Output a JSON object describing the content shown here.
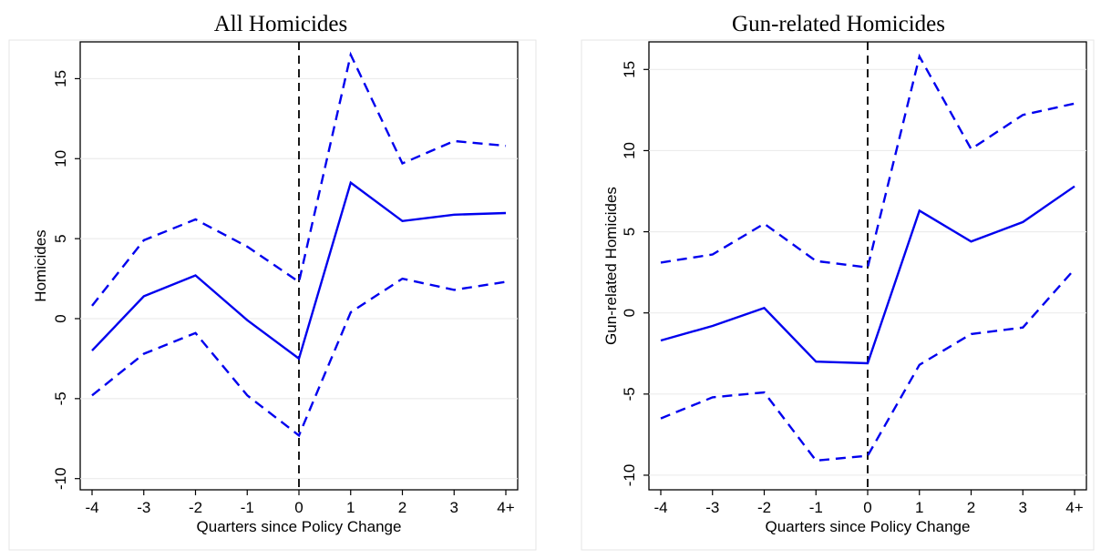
{
  "chart_data": [
    {
      "type": "line",
      "title": "All Homicides",
      "xlabel": "Quarters since Policy Change",
      "ylabel": "Homicides",
      "categories": [
        "-4",
        "-3",
        "-2",
        "-1",
        "0",
        "1",
        "2",
        "3",
        "4+"
      ],
      "x_tick_labels": [
        "-4",
        "-3",
        "-2",
        "-1",
        "0",
        "1",
        "2",
        "3",
        "4+"
      ],
      "y_ticks": [
        -10,
        -5,
        0,
        5,
        10,
        15
      ],
      "y_tick_labels": [
        "-10",
        "-5",
        "0",
        "5",
        "10",
        "15"
      ],
      "ylim": [
        -10.7,
        17.3
      ],
      "grid": true,
      "reference_line_x": "0",
      "series": [
        {
          "style": "dashed",
          "color": "#0000ee",
          "values": [
            0.8,
            4.9,
            6.2,
            4.5,
            2.3,
            16.5,
            9.7,
            11.1,
            10.8
          ]
        },
        {
          "style": "solid",
          "color": "#0000ee",
          "values": [
            -2.0,
            1.4,
            2.7,
            -0.1,
            -2.5,
            8.5,
            6.1,
            6.5,
            6.6
          ]
        },
        {
          "style": "dashed",
          "color": "#0000ee",
          "values": [
            -4.8,
            -2.2,
            -0.9,
            -4.8,
            -7.3,
            0.4,
            2.5,
            1.8,
            2.3
          ]
        }
      ]
    },
    {
      "type": "line",
      "title": "Gun-related Homicides",
      "xlabel": "Quarters since Policy Change",
      "ylabel": "Gun-related Homicides",
      "categories": [
        "-4",
        "-3",
        "-2",
        "-1",
        "0",
        "1",
        "2",
        "3",
        "4+"
      ],
      "x_tick_labels": [
        "-4",
        "-3",
        "-2",
        "-1",
        "0",
        "1",
        "2",
        "3",
        "4+"
      ],
      "y_ticks": [
        -10,
        -5,
        0,
        5,
        10,
        15
      ],
      "y_tick_labels": [
        "-10",
        "-5",
        "0",
        "5",
        "10",
        "15"
      ],
      "ylim": [
        -10.9,
        16.7
      ],
      "grid": true,
      "reference_line_x": "0",
      "series": [
        {
          "style": "dashed",
          "color": "#0000ee",
          "values": [
            3.1,
            3.6,
            5.5,
            3.2,
            2.8,
            15.8,
            10.1,
            12.2,
            12.9
          ]
        },
        {
          "style": "solid",
          "color": "#0000ee",
          "values": [
            -1.7,
            -0.8,
            0.3,
            -3.0,
            -3.1,
            6.3,
            4.4,
            5.6,
            7.8
          ]
        },
        {
          "style": "dashed",
          "color": "#0000ee",
          "values": [
            -6.5,
            -5.2,
            -4.9,
            -9.1,
            -8.8,
            -3.2,
            -1.3,
            -0.9,
            2.7
          ]
        }
      ]
    }
  ]
}
